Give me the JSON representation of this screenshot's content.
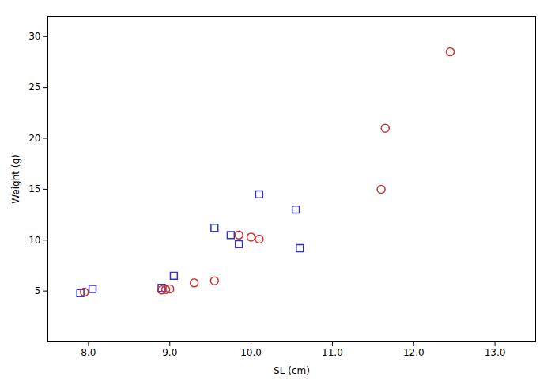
{
  "chart_data": {
    "type": "scatter",
    "xlabel": "SL (cm)",
    "ylabel": "Weight (g)",
    "xlim": [
      7.5,
      13.5
    ],
    "ylim": [
      0,
      32
    ],
    "xticks": [
      8,
      9,
      10,
      11,
      12,
      13
    ],
    "yticks": [
      5,
      10,
      15,
      20,
      25,
      30
    ],
    "grid": false,
    "series": [
      {
        "color": "#3333cc",
        "marker": "square",
        "x": [
          7.9,
          8.05,
          8.9,
          9.05,
          9.55,
          9.75,
          9.85,
          10.1,
          10.55,
          10.6
        ],
        "values": [
          4.8,
          5.2,
          5.3,
          6.5,
          11.2,
          10.5,
          9.6,
          14.5,
          13.0,
          9.2
        ]
      },
      {
        "color": "#cc3333",
        "marker": "circle",
        "x": [
          7.95,
          8.9,
          8.95,
          9.0,
          9.3,
          9.55,
          9.85,
          10.0,
          10.1,
          11.6,
          11.65,
          12.45
        ],
        "values": [
          4.9,
          5.1,
          5.15,
          5.2,
          5.8,
          6.0,
          10.5,
          10.3,
          10.1,
          15.0,
          21.0,
          28.5
        ]
      }
    ]
  }
}
